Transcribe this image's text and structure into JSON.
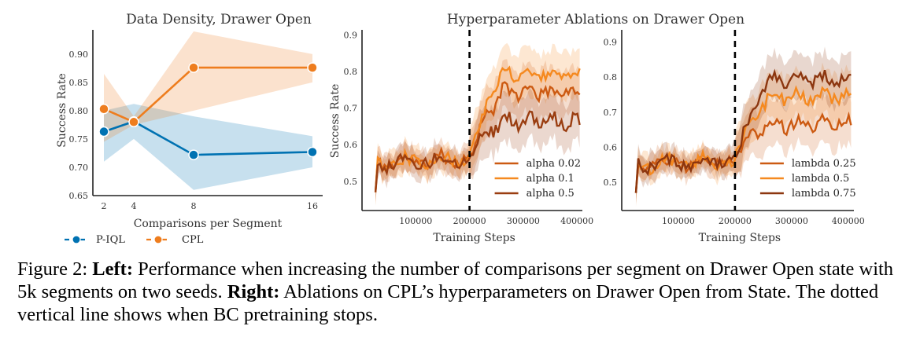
{
  "chart_data": [
    {
      "type": "line",
      "title": "Data Density, Drawer Open",
      "xlabel": "Comparisons per Segment",
      "ylabel": "Success Rate",
      "x": [
        2,
        4,
        8,
        16
      ],
      "x_tick_labels": [
        "2",
        "4",
        "8",
        "16"
      ],
      "y_ticks": [
        "0.65",
        "0.70",
        "0.75",
        "0.80",
        "0.85",
        "0.90"
      ],
      "ylim": [
        0.65,
        0.94
      ],
      "legend_position": "below",
      "series": [
        {
          "name": "P-IQL",
          "color": "#0072b2",
          "values": [
            0.763,
            0.781,
            0.722,
            0.727
          ],
          "band_low": [
            0.71,
            0.75,
            0.66,
            0.7
          ],
          "band_high": [
            0.8,
            0.812,
            0.79,
            0.755
          ]
        },
        {
          "name": "CPL",
          "color": "#ee7d1e",
          "values": [
            0.803,
            0.78,
            0.876,
            0.876
          ],
          "band_low": [
            0.745,
            0.775,
            0.8,
            0.85
          ],
          "band_high": [
            0.865,
            0.79,
            0.94,
            0.9
          ]
        }
      ]
    },
    {
      "type": "line",
      "title": "Hyperparameter Ablations on Drawer Open",
      "xlabel": "Training Steps",
      "ylabel": "Success Rate",
      "x_tick_labels": [
        "100000",
        "200000",
        "300000",
        "400000"
      ],
      "y_ticks": [
        "0.5",
        "0.6",
        "0.7",
        "0.8",
        "0.9"
      ],
      "xlim": [
        0,
        410000
      ],
      "ylim": [
        0.42,
        0.91
      ],
      "bc_pretraining_stop": 200000,
      "legend_position": "lower-right",
      "series": [
        {
          "name": "alpha 0.02",
          "color": "#cc5a12",
          "mode": "mid"
        },
        {
          "name": "alpha 0.1",
          "color": "#f5891f",
          "mode": "high"
        },
        {
          "name": "alpha 0.5",
          "color": "#9a3d10",
          "mode": "low"
        }
      ]
    },
    {
      "type": "line",
      "title": "",
      "xlabel": "Training Steps",
      "ylabel": "",
      "x_tick_labels": [
        "100000",
        "200000",
        "300000",
        "400000"
      ],
      "y_ticks": [
        "0.5",
        "0.6",
        "0.7",
        "0.8",
        "0.9"
      ],
      "xlim": [
        0,
        410000
      ],
      "ylim": [
        0.42,
        0.93
      ],
      "bc_pretraining_stop": 200000,
      "legend_position": "lower-right",
      "series": [
        {
          "name": "lambda 0.25",
          "color": "#cc5a12",
          "mode": "low"
        },
        {
          "name": "lambda 0.5",
          "color": "#f5891f",
          "mode": "mid"
        },
        {
          "name": "lambda 0.75",
          "color": "#8c360f",
          "mode": "high"
        }
      ]
    }
  ],
  "caption": {
    "fig_label": "Figure 2:",
    "left_label": "Left:",
    "left_text": "Performance when increasing the number of comparisons per segment on Drawer Open state with 5k segments on two seeds.",
    "right_label": "Right:",
    "right_text": "Ablations on CPL’s hyperparameters on Drawer Open from State. The dotted vertical line shows when BC pretraining stops."
  }
}
